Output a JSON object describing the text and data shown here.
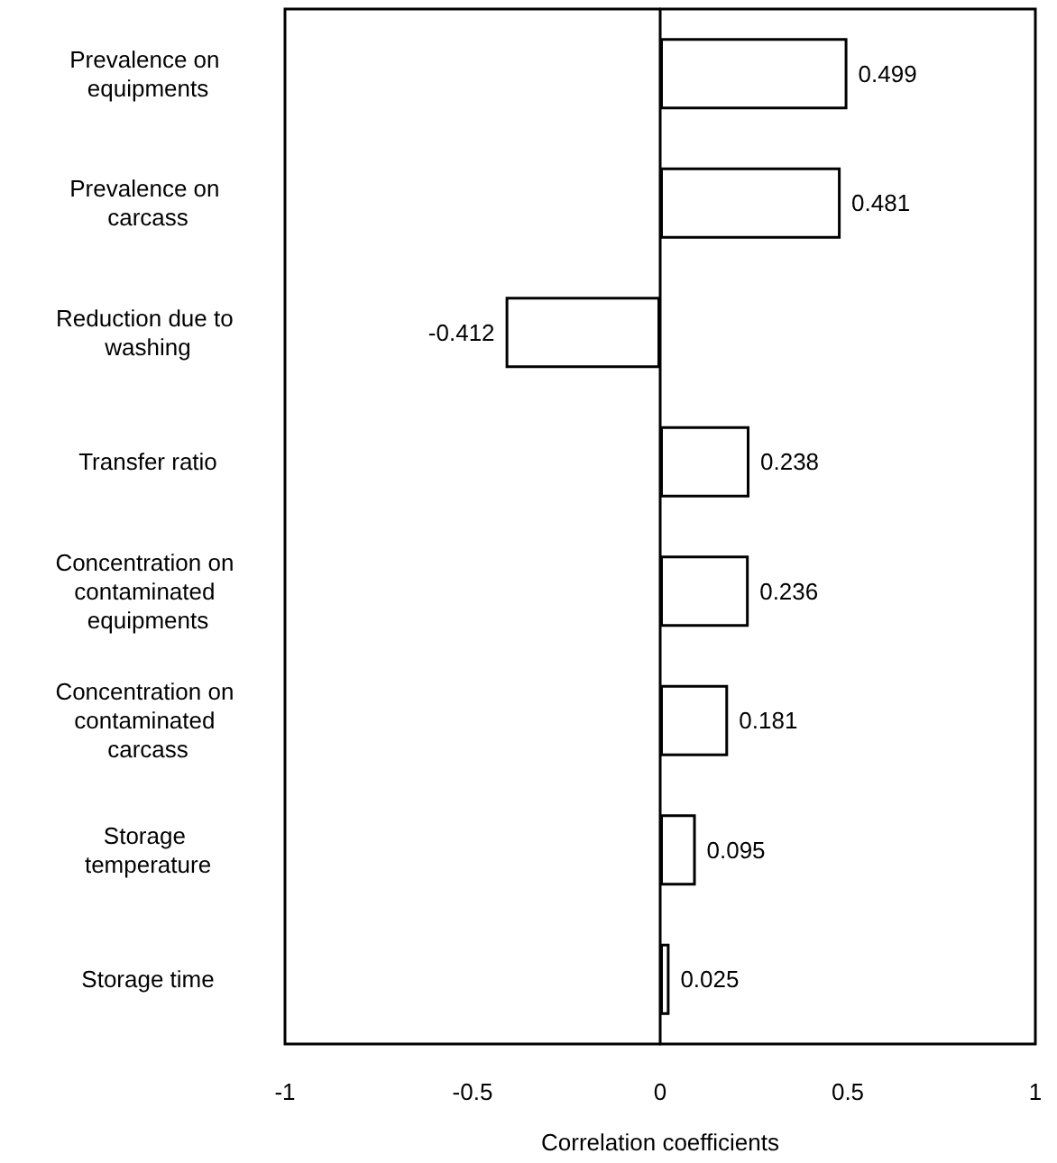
{
  "chart_data": {
    "type": "bar",
    "orientation": "horizontal",
    "xlabel": "Correlation coefficients",
    "categories": [
      "Prevalence on equipments",
      "Prevalence on carcass",
      "Reduction due to washing",
      "Transfer ratio",
      "Concentration on contaminated equipments",
      "Concentration on contaminated carcass",
      "Storage temperature",
      "Storage time"
    ],
    "values": [
      0.499,
      0.481,
      -0.412,
      0.238,
      0.236,
      0.181,
      0.095,
      0.025
    ],
    "color": "#ffffff",
    "data_labels": true,
    "xlim": [
      -1,
      1
    ],
    "xticks": [
      -1,
      -0.5,
      0,
      0.5,
      1
    ]
  }
}
